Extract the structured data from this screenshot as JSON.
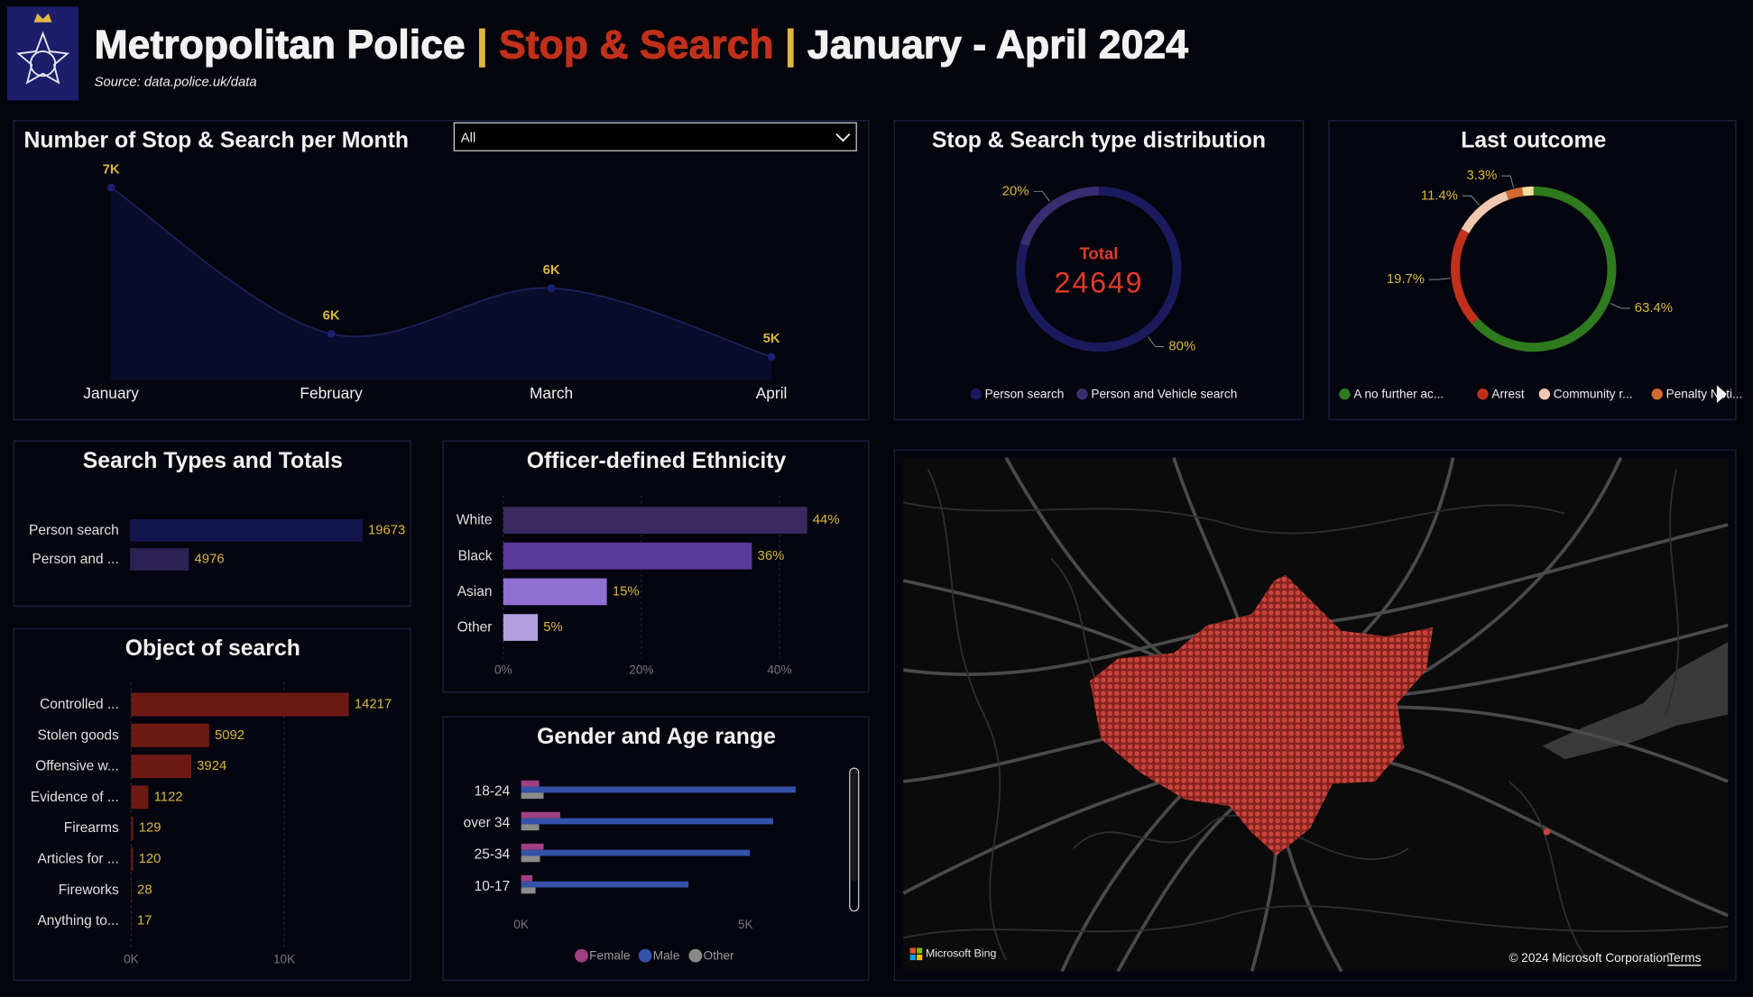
{
  "header": {
    "title": [
      "Metropolitan Police",
      "|",
      "Stop & Search",
      "|",
      "January - April 2024"
    ],
    "source": "Source: data.police.uk/data"
  },
  "filter": {
    "value": "All"
  },
  "chart_data": [
    {
      "type": "line",
      "title": "Number of Stop & Search per Month",
      "categories": [
        "January",
        "February",
        "March",
        "April"
      ],
      "values": [
        7300,
        5700,
        6200,
        5449
      ],
      "value_labels": [
        "7K",
        "6K",
        "6K",
        "5K"
      ],
      "ylim": [
        5200,
        7300
      ],
      "color": "#1c2058",
      "fill": "#0a0c2c"
    },
    {
      "type": "donut",
      "title": "Stop & Search type distribution",
      "categories": [
        "Person search",
        "Person and Vehicle search"
      ],
      "values": [
        80,
        20
      ],
      "value_labels": [
        "80%",
        "20%"
      ],
      "colors": [
        "#1a1a5c",
        "#3a2c70"
      ],
      "center_label": "Total",
      "center_value": 24649
    },
    {
      "type": "donut",
      "title": "Last outcome",
      "categories": [
        "A no further ac...",
        "Arrest",
        "Community r...",
        "Penalty Noti...",
        null
      ],
      "values": [
        63.4,
        19.7,
        11.4,
        3.3,
        2.2
      ],
      "value_labels": [
        "63.4%",
        "19.7%",
        "11.4%",
        "3.3%",
        null
      ],
      "colors": [
        "#2e7a1e",
        "#c0301a",
        "#f0c8b0",
        "#d06a30",
        "#f0e0a0"
      ]
    },
    {
      "type": "hbar",
      "title": "Search Types and Totals",
      "categories": [
        "Person search",
        "Person and ..."
      ],
      "values": [
        19673,
        4976
      ],
      "colors": [
        "#15154e",
        "#2c2252"
      ]
    },
    {
      "type": "hbar",
      "title": "Officer-defined Ethnicity",
      "categories": [
        "White",
        "Black",
        "Asian",
        "Other"
      ],
      "values": [
        44,
        36,
        15,
        5
      ],
      "value_labels": [
        "44%",
        "36%",
        "15%",
        "5%"
      ],
      "colors": [
        "#3a2a60",
        "#5a3a9a",
        "#9070d0",
        "#b0a0e0"
      ],
      "xlim": [
        0,
        50
      ],
      "xticks": [
        {
          "value": 0,
          "label": "0%"
        },
        {
          "value": 20,
          "label": "20%"
        },
        {
          "value": 40,
          "label": "40%"
        }
      ],
      "grid": true
    },
    {
      "type": "hbar",
      "title": "Object of search",
      "categories": [
        "Controlled ...",
        "Stolen goods",
        "Offensive w...",
        "Evidence of ...",
        "Firearms",
        "Articles for ...",
        "Fireworks",
        "Anything to..."
      ],
      "values": [
        14217,
        5092,
        3924,
        1122,
        129,
        120,
        28,
        17
      ],
      "color": "#6e1a14",
      "xlim": [
        0,
        15000
      ],
      "xticks": [
        {
          "value": 0,
          "label": "0K"
        },
        {
          "value": 10000,
          "label": "10K"
        }
      ],
      "grid": true
    },
    {
      "type": "hbar",
      "title": "Gender and Age range",
      "categories": [
        "18-24",
        "over 34",
        "25-34",
        "10-17"
      ],
      "series": [
        {
          "name": "Female",
          "color": "#a04080",
          "values": [
            400,
            870,
            500,
            250
          ]
        },
        {
          "name": "Male",
          "color": "#3452a8",
          "values": [
            6120,
            5620,
            5100,
            3730
          ]
        },
        {
          "name": "Other",
          "color": "#8a8a8a",
          "values": [
            500,
            400,
            420,
            320
          ]
        }
      ],
      "xlim": [
        0,
        7000
      ],
      "xticks": [
        {
          "value": 0,
          "label": "0K"
        },
        {
          "value": 5000,
          "label": "5K"
        }
      ],
      "grid": false
    }
  ],
  "map": {
    "provider": "Microsoft Bing",
    "copyright": "© 2024 Microsoft Corporation",
    "terms": "Terms"
  }
}
